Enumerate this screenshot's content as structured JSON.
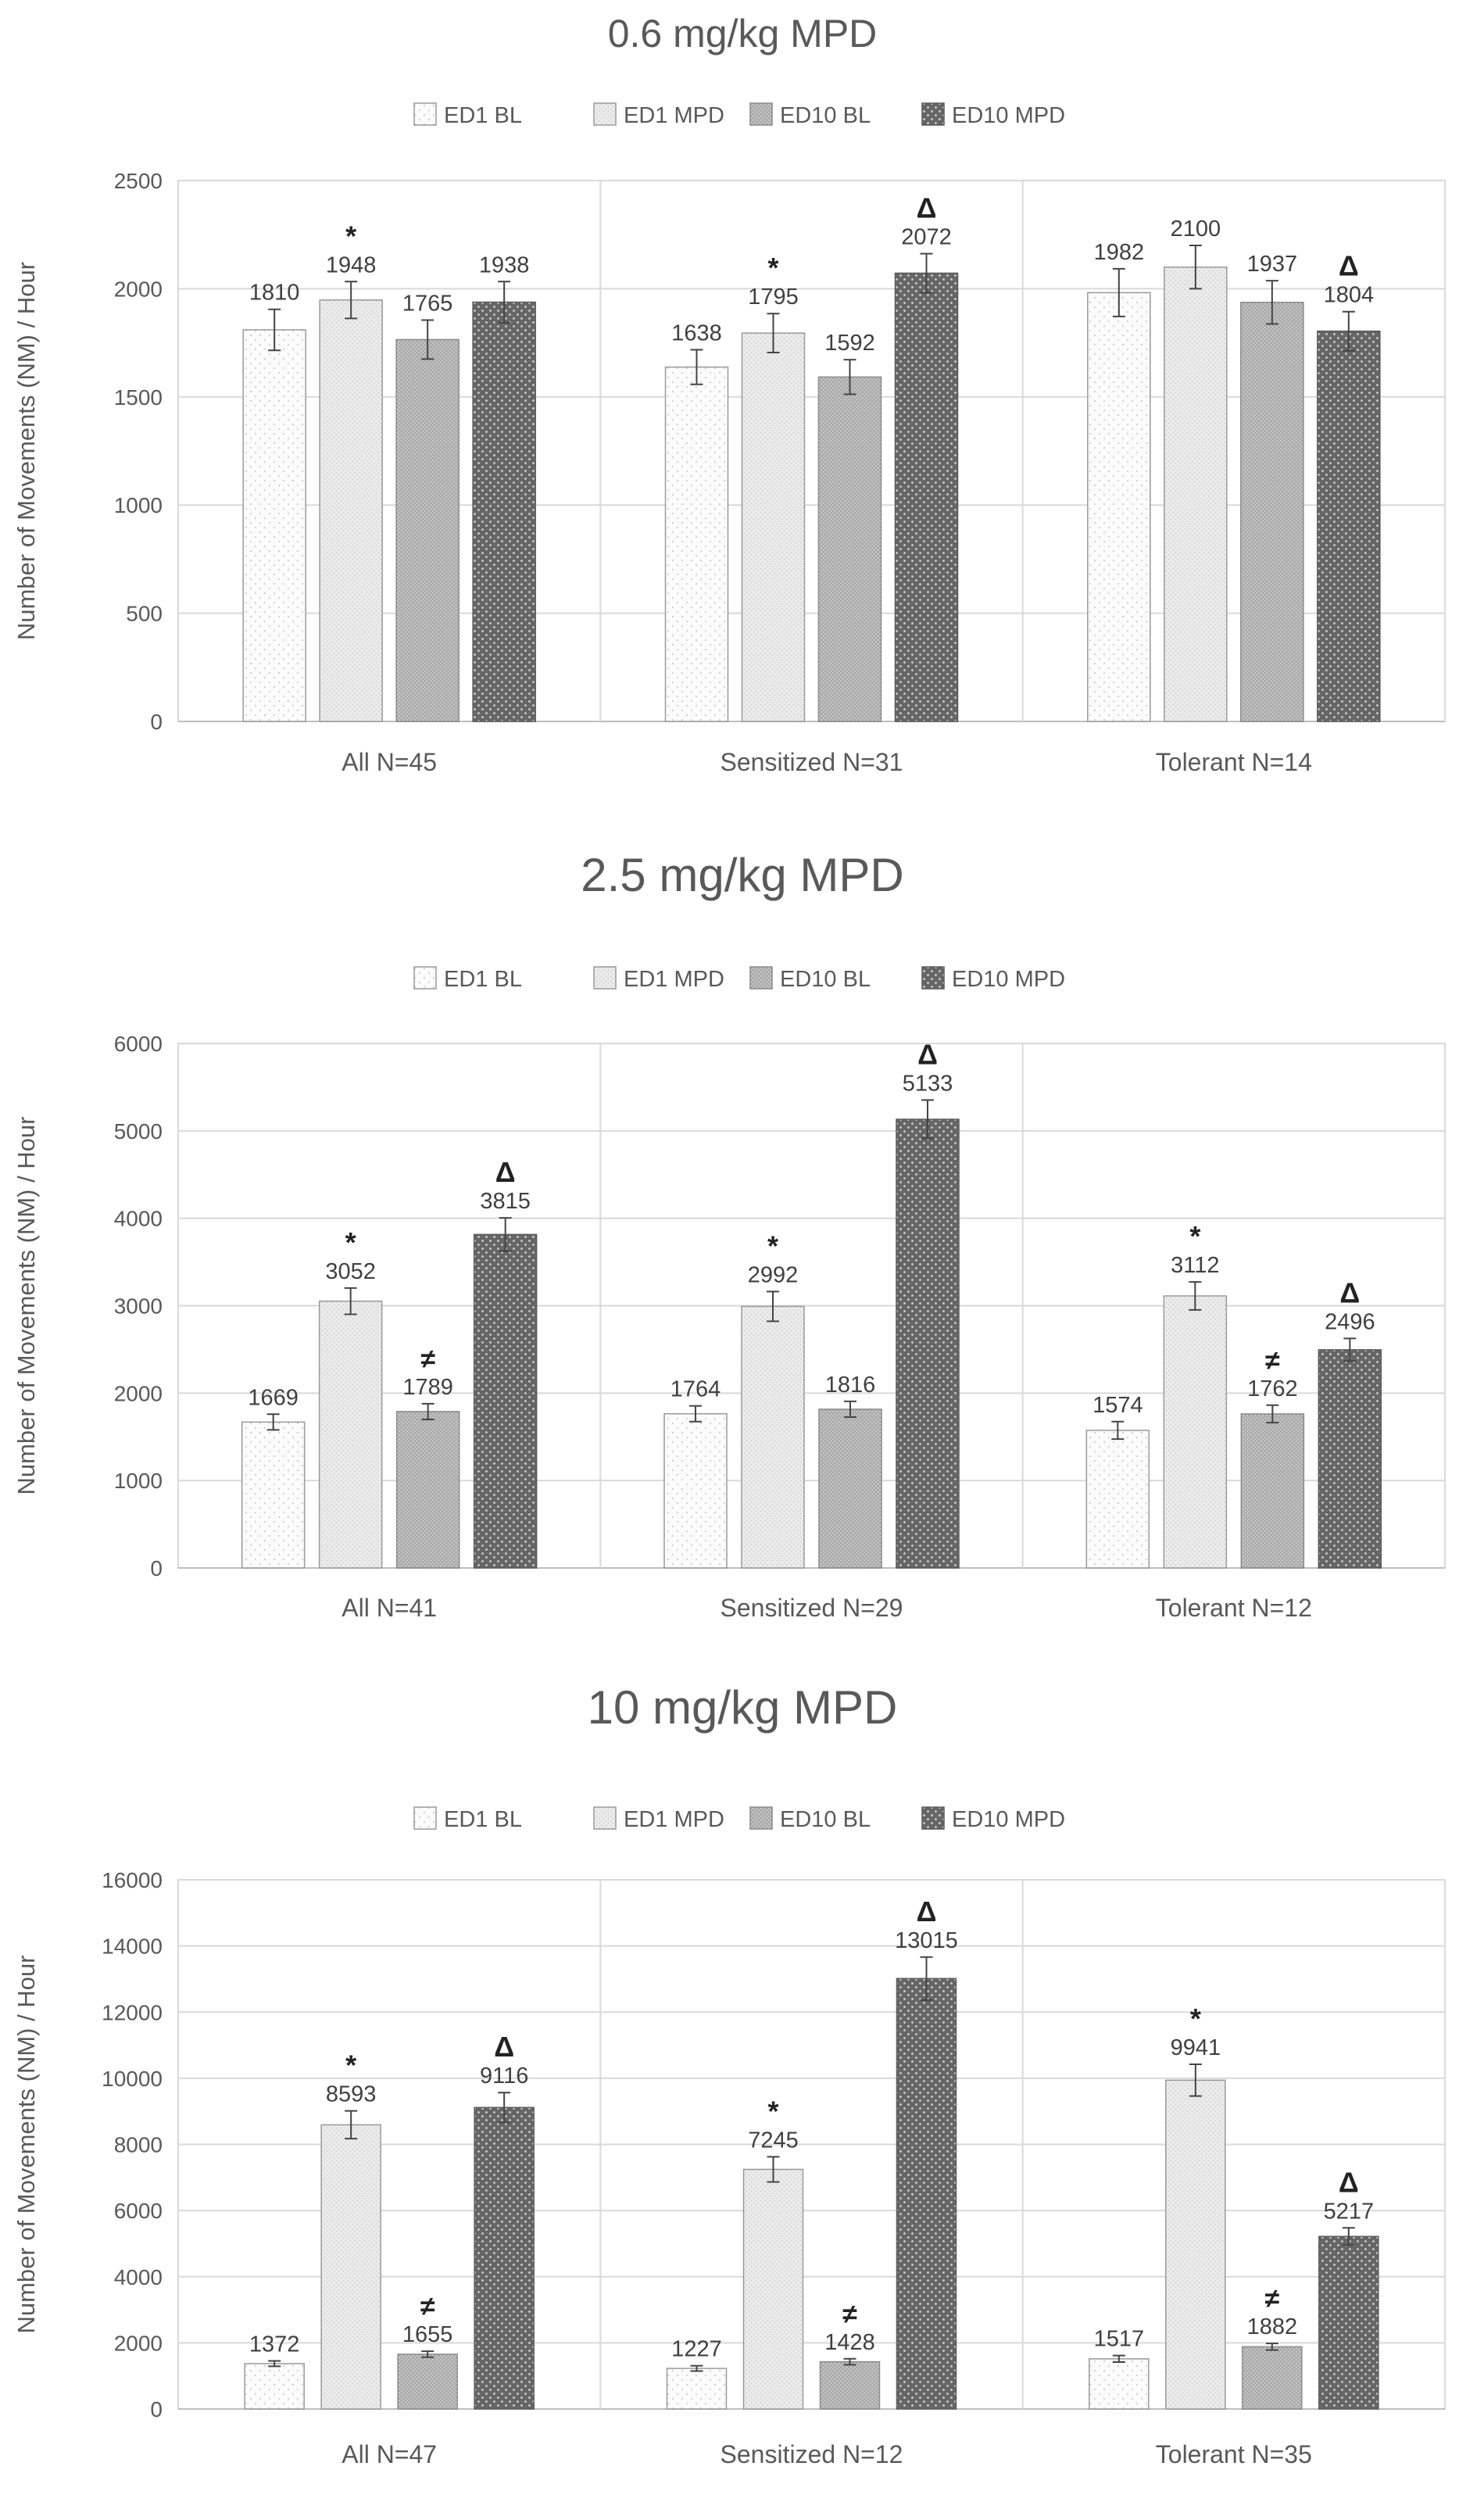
{
  "figure": {
    "legend_labels": [
      "ED1 BL",
      "ED1 MPD",
      "ED10 BL",
      "ED10 MPD"
    ],
    "series_colors": [
      "#fafafa",
      "#ececec",
      "#b8b8b8",
      "#707070"
    ],
    "ylabel": "Number of Movements (NM) / Hour"
  },
  "chart_data": [
    {
      "type": "bar",
      "title": "0.6 mg/kg MPD",
      "xlabel": "",
      "ylabel": "Number of Movements (NM) / Hour",
      "ylim": [
        0,
        2500
      ],
      "yticks": [
        0,
        500,
        1000,
        1500,
        2000,
        2500
      ],
      "grid": true,
      "legend": "top",
      "categories": [
        "All N=45",
        "Sensitized N=31",
        "Tolerant N=14"
      ],
      "series": [
        {
          "name": "ED1 BL",
          "values": [
            1810,
            1638,
            1982
          ],
          "errors": [
            95,
            80,
            110
          ],
          "markers": [
            "",
            "",
            ""
          ]
        },
        {
          "name": "ED1 MPD",
          "values": [
            1948,
            1795,
            2100
          ],
          "errors": [
            85,
            90,
            100
          ],
          "markers": [
            "*",
            "*",
            ""
          ]
        },
        {
          "name": "ED10 BL",
          "values": [
            1765,
            1592,
            1937
          ],
          "errors": [
            90,
            80,
            100
          ],
          "markers": [
            "",
            "",
            ""
          ]
        },
        {
          "name": "ED10 MPD",
          "values": [
            1938,
            2072,
            1804
          ],
          "errors": [
            95,
            90,
            90
          ],
          "markers": [
            "",
            "Δ",
            "Δ"
          ]
        }
      ]
    },
    {
      "type": "bar",
      "title": "2.5 mg/kg MPD",
      "xlabel": "",
      "ylabel": "Number of Movements (NM) / Hour",
      "ylim": [
        0,
        6000
      ],
      "yticks": [
        0,
        1000,
        2000,
        3000,
        4000,
        5000,
        6000
      ],
      "grid": true,
      "legend": "top",
      "categories": [
        "All N=41",
        "Sensitized N=29",
        "Tolerant N=12"
      ],
      "series": [
        {
          "name": "ED1 BL",
          "values": [
            1669,
            1764,
            1574
          ],
          "errors": [
            90,
            90,
            100
          ],
          "markers": [
            "",
            "",
            ""
          ]
        },
        {
          "name": "ED1 MPD",
          "values": [
            3052,
            2992,
            3112
          ],
          "errors": [
            150,
            170,
            160
          ],
          "markers": [
            "*",
            "*",
            "*"
          ]
        },
        {
          "name": "ED10 BL",
          "values": [
            1789,
            1816,
            1762
          ],
          "errors": [
            90,
            90,
            100
          ],
          "markers": [
            "≠",
            "",
            "≠"
          ]
        },
        {
          "name": "ED10 MPD",
          "values": [
            3815,
            5133,
            2496
          ],
          "errors": [
            190,
            220,
            130
          ],
          "markers": [
            "Δ",
            "Δ",
            "Δ"
          ]
        }
      ]
    },
    {
      "type": "bar",
      "title": "10 mg/kg MPD",
      "xlabel": "",
      "ylabel": "Number of Movements (NM) / Hour",
      "ylim": [
        0,
        16000
      ],
      "yticks": [
        0,
        2000,
        4000,
        6000,
        8000,
        10000,
        12000,
        14000,
        16000
      ],
      "grid": true,
      "legend": "top",
      "categories": [
        "All N=47",
        "Sensitized N=12",
        "Tolerant N=35"
      ],
      "series": [
        {
          "name": "ED1 BL",
          "values": [
            1372,
            1227,
            1517
          ],
          "errors": [
            80,
            80,
            100
          ],
          "markers": [
            "",
            "",
            ""
          ]
        },
        {
          "name": "ED1 MPD",
          "values": [
            8593,
            7245,
            9941
          ],
          "errors": [
            420,
            380,
            480
          ],
          "markers": [
            "*",
            "*",
            "*"
          ]
        },
        {
          "name": "ED10 BL",
          "values": [
            1655,
            1428,
            1882
          ],
          "errors": [
            90,
            90,
            100
          ],
          "markers": [
            "≠",
            "≠",
            "≠"
          ]
        },
        {
          "name": "ED10 MPD",
          "values": [
            9116,
            13015,
            5217
          ],
          "errors": [
            450,
            650,
            260
          ],
          "markers": [
            "Δ",
            "Δ",
            "Δ"
          ]
        }
      ]
    }
  ]
}
